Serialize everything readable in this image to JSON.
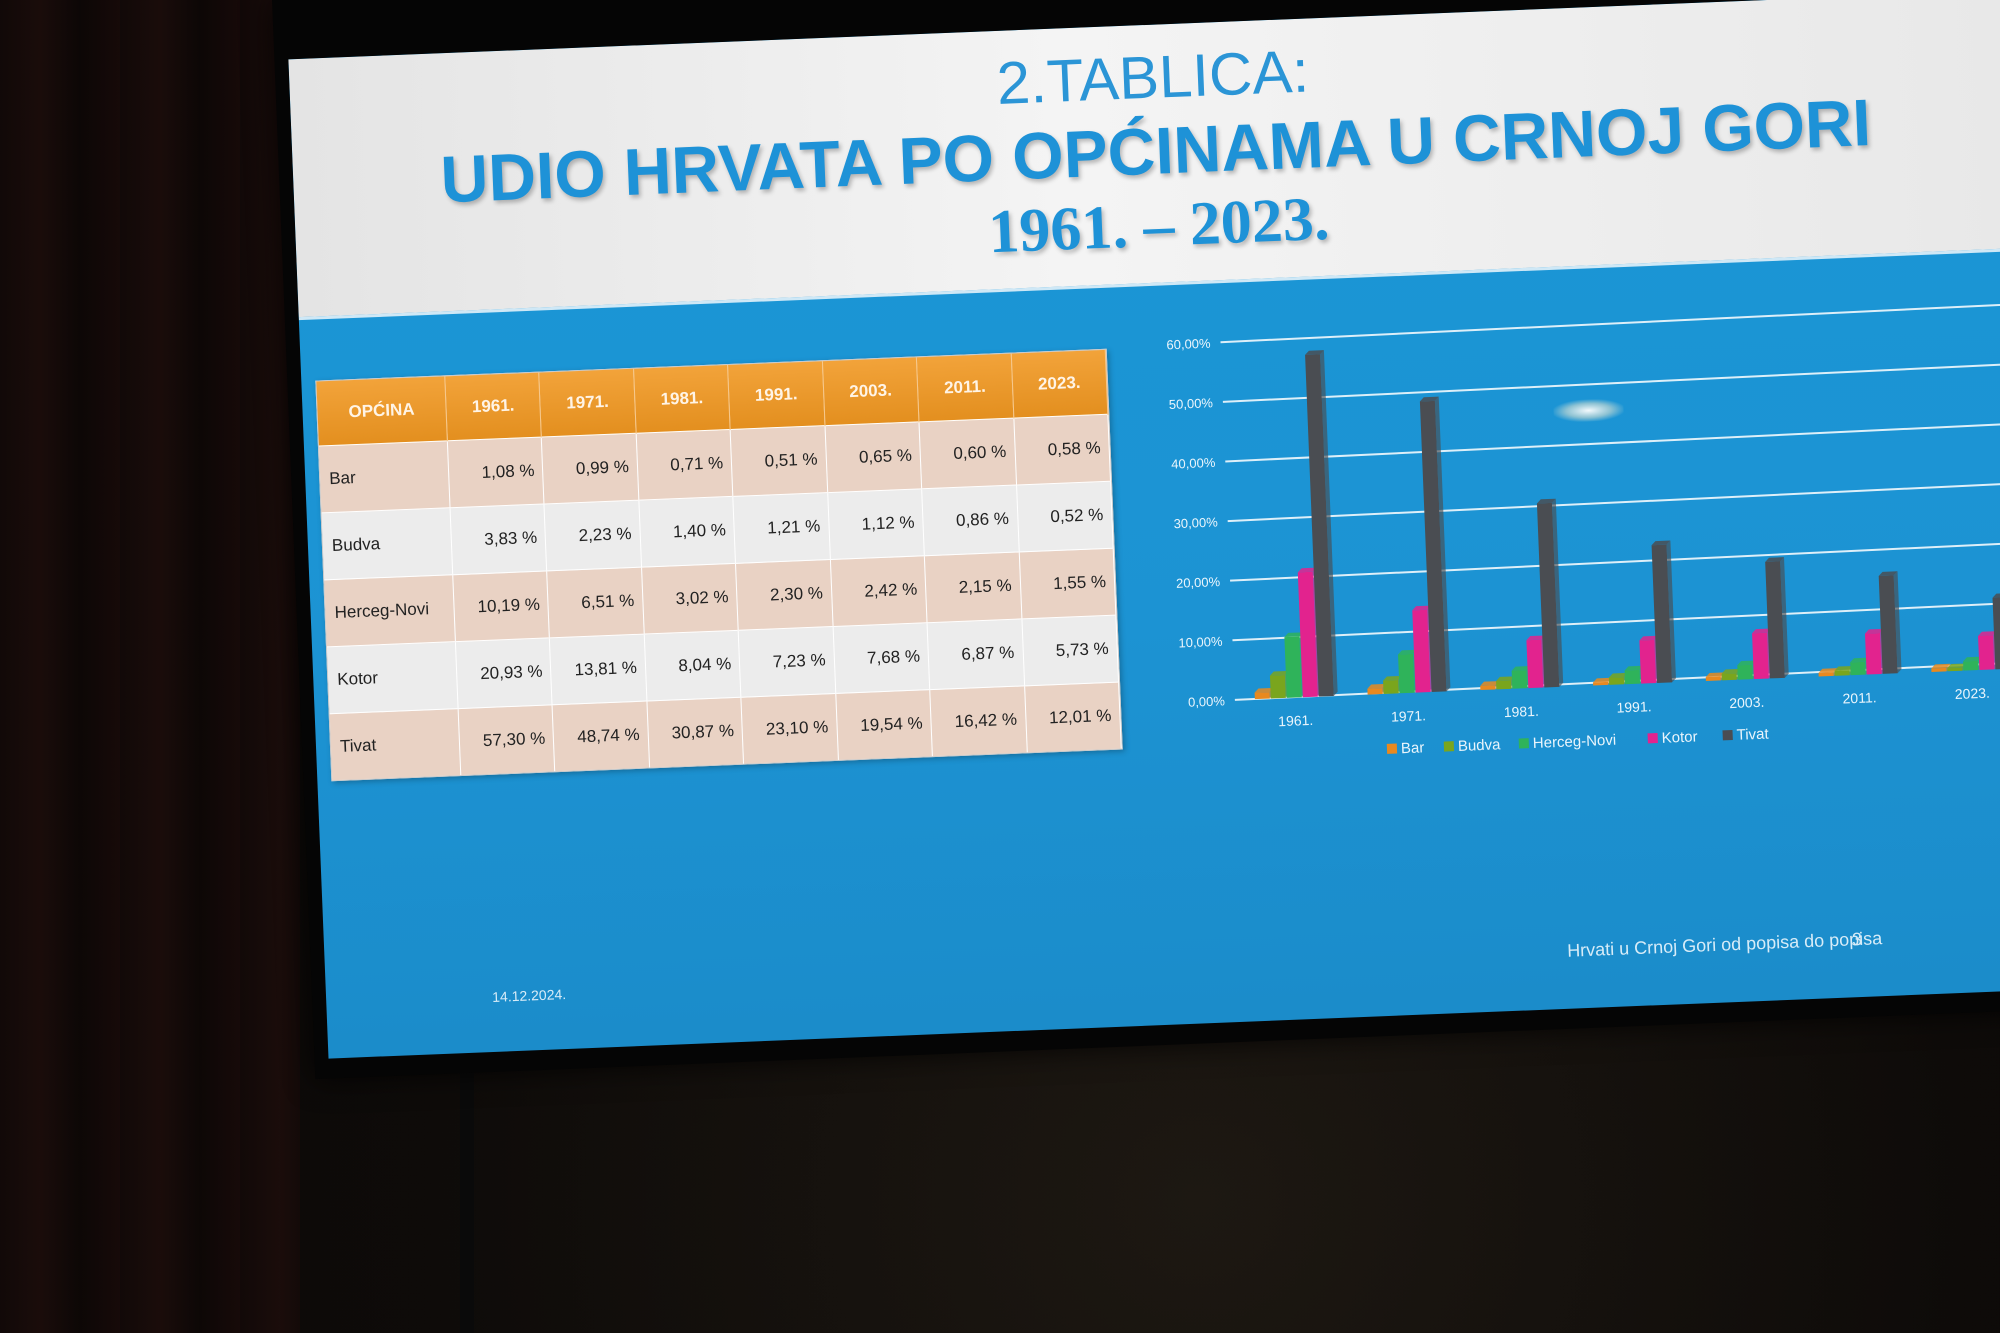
{
  "slide": {
    "title_line1": "2.TABLICA:",
    "title_line2": "UDIO HRVATA PO OPĆINAMA U CRNOJ GORI",
    "title_line3": "1961. – 2023.",
    "footer_date": "14.12.2024.",
    "footer_title": "Hrvati u Crnoj Gori od popisa do popisa",
    "page_number": "3"
  },
  "table": {
    "headers": [
      "OPĆINA",
      "1961.",
      "1971.",
      "1981.",
      "1991.",
      "2003.",
      "2011.",
      "2023."
    ],
    "rows": [
      {
        "name": "Bar",
        "values": [
          "1,08 %",
          "0,99 %",
          "0,71 %",
          "0,51 %",
          "0,65 %",
          "0,60 %",
          "0,58 %"
        ]
      },
      {
        "name": "Budva",
        "values": [
          "3,83 %",
          "2,23 %",
          "1,40 %",
          "1,21 %",
          "1,12 %",
          "0,86 %",
          "0,52 %"
        ]
      },
      {
        "name": "Herceg-Novi",
        "values": [
          "10,19 %",
          "6,51 %",
          "3,02 %",
          "2,30 %",
          "2,42 %",
          "2,15 %",
          "1,55 %"
        ]
      },
      {
        "name": "Kotor",
        "values": [
          "20,93 %",
          "13,81 %",
          "8,04 %",
          "7,23 %",
          "7,68 %",
          "6,87 %",
          "5,73 %"
        ]
      },
      {
        "name": "Tivat",
        "values": [
          "57,30 %",
          "48,74 %",
          "30,87 %",
          "23,10 %",
          "19,54 %",
          "16,42 %",
          "12,01 %"
        ]
      }
    ]
  },
  "chart_data": {
    "type": "bar",
    "categories": [
      "1961.",
      "1971.",
      "1981.",
      "1991.",
      "2003.",
      "2011.",
      "2023."
    ],
    "series": [
      {
        "name": "Bar",
        "color": "#e8891f",
        "values": [
          1.08,
          0.99,
          0.71,
          0.51,
          0.65,
          0.6,
          0.58
        ]
      },
      {
        "name": "Budva",
        "color": "#7aa51d",
        "values": [
          3.83,
          2.23,
          1.4,
          1.21,
          1.12,
          0.86,
          0.52
        ]
      },
      {
        "name": "Herceg-Novi",
        "color": "#2fb35a",
        "values": [
          10.19,
          6.51,
          3.02,
          2.3,
          2.42,
          2.15,
          1.55
        ]
      },
      {
        "name": "Kotor",
        "color": "#e2238e",
        "values": [
          20.93,
          13.81,
          8.04,
          7.23,
          7.68,
          6.87,
          5.73
        ]
      },
      {
        "name": "Tivat",
        "color": "#4a4d52",
        "values": [
          57.3,
          48.74,
          30.87,
          23.1,
          19.54,
          16.42,
          12.01
        ]
      }
    ],
    "y_ticks": [
      "0,00%",
      "10,00%",
      "20,00%",
      "30,00%",
      "40,00%",
      "50,00%",
      "60,00%"
    ],
    "ylim": [
      0,
      60
    ],
    "grid": true,
    "legend_position": "bottom"
  }
}
